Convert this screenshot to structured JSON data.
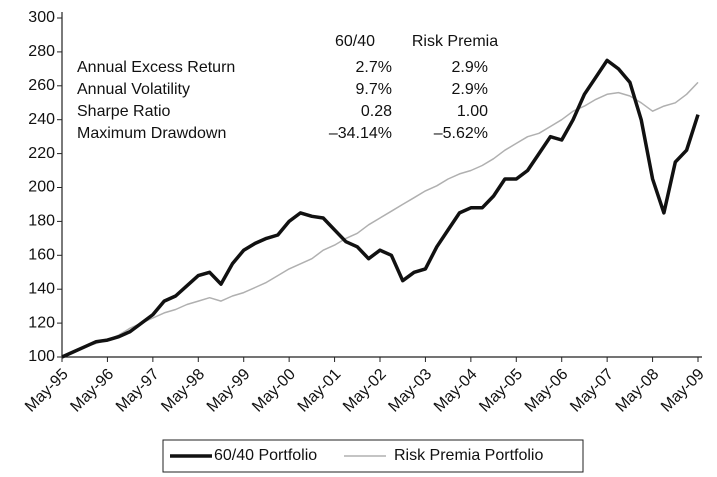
{
  "chart_data": {
    "type": "line",
    "categories": [
      "May-95",
      null,
      null,
      null,
      "May-96",
      null,
      null,
      null,
      "May-97",
      null,
      null,
      null,
      "May-98",
      null,
      null,
      null,
      "May-99",
      null,
      null,
      null,
      "May-00",
      null,
      null,
      null,
      "May-01",
      null,
      null,
      null,
      "May-02",
      null,
      null,
      null,
      "May-03",
      null,
      null,
      null,
      "May-04",
      null,
      null,
      null,
      "May-05",
      null,
      null,
      null,
      "May-06",
      null,
      null,
      null,
      "May-07",
      null,
      null,
      null,
      "May-08",
      null,
      null,
      null,
      "May-09"
    ],
    "series": [
      {
        "name": "60/40 Portfolio",
        "color": "#111111",
        "width": 3.5,
        "values": [
          100,
          103,
          106,
          109,
          110,
          112,
          115,
          120,
          125,
          133,
          136,
          142,
          148,
          150,
          143,
          155,
          163,
          167,
          170,
          172,
          180,
          185,
          183,
          182,
          175,
          168,
          165,
          158,
          163,
          160,
          145,
          150,
          152,
          165,
          175,
          185,
          188,
          188,
          195,
          205,
          205,
          210,
          220,
          230,
          228,
          240,
          255,
          265,
          275,
          270,
          262,
          240,
          205,
          185,
          215,
          222,
          243
        ]
      },
      {
        "name": "Risk Premia Portfolio",
        "color": "#b0b0b0",
        "width": 1.5,
        "values": [
          100,
          103,
          106,
          108,
          110,
          113,
          117,
          120,
          123,
          126,
          128,
          131,
          133,
          135,
          133,
          136,
          138,
          141,
          144,
          148,
          152,
          155,
          158,
          163,
          166,
          170,
          173,
          178,
          182,
          186,
          190,
          194,
          198,
          201,
          205,
          208,
          210,
          213,
          217,
          222,
          226,
          230,
          232,
          236,
          240,
          245,
          248,
          252,
          255,
          256,
          254,
          250,
          245,
          248,
          250,
          255,
          262
        ]
      }
    ],
    "ylim": [
      100,
      300
    ],
    "yticks": [
      100,
      120,
      140,
      160,
      180,
      200,
      220,
      240,
      260,
      280,
      300
    ],
    "legend": "bottom",
    "stats_table": {
      "columns": [
        "60/40",
        "Risk Premia"
      ],
      "rows": [
        {
          "label": "Annual Excess Return",
          "values": [
            "2.7%",
            "2.9%"
          ]
        },
        {
          "label": "Annual Volatility",
          "values": [
            "9.7%",
            "2.9%"
          ]
        },
        {
          "label": "Sharpe Ratio",
          "values": [
            "0.28",
            "1.00"
          ]
        },
        {
          "label": "Maximum Drawdown",
          "values": [
            "–34.14%",
            "–5.62%"
          ]
        }
      ]
    }
  }
}
